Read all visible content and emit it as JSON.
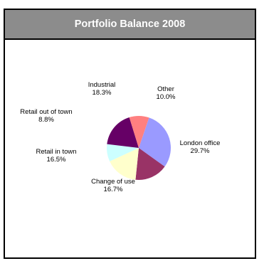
{
  "panel": {
    "title": "Portfolio Balance 2008"
  },
  "chart_data": {
    "type": "pie",
    "title": "Portfolio Balance 2008",
    "slices": [
      {
        "label": "London office",
        "value": 29.7,
        "display": "29.7%",
        "color": "#9a9aff"
      },
      {
        "label": "Change of use",
        "value": 16.7,
        "display": "16.7%",
        "color": "#993366"
      },
      {
        "label": "Retail in town",
        "value": 16.5,
        "display": "16.5%",
        "color": "#ffffcc"
      },
      {
        "label": "Retail out of town",
        "value": 8.8,
        "display": "8.8%",
        "color": "#ccffff"
      },
      {
        "label": "Industrial",
        "value": 18.3,
        "display": "18.3%",
        "color": "#660066"
      },
      {
        "label": "Other",
        "value": 10.0,
        "display": "10.0%",
        "color": "#ff8080"
      }
    ]
  }
}
